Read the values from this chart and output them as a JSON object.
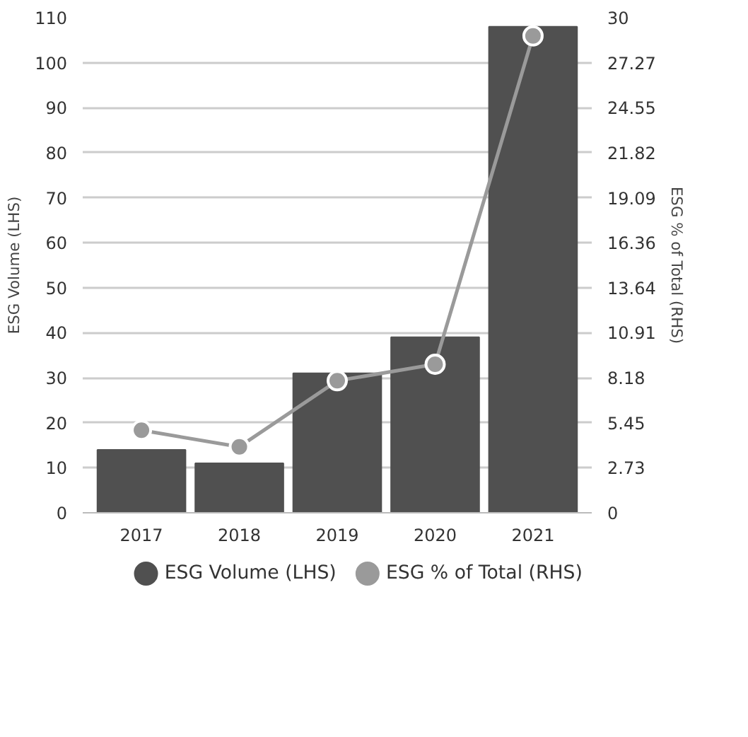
{
  "chart_data": {
    "type": "bar",
    "categories": [
      "2017",
      "2018",
      "2019",
      "2020",
      "2021"
    ],
    "ylabel": "ESG Volume (LHS)",
    "y2label": "ESG % of Total (RHS)",
    "series": [
      {
        "name": "ESG Volume (LHS)",
        "color": "#505050",
        "values": [
          14,
          11,
          31,
          39,
          108
        ]
      },
      {
        "name": "ESG % of Total (RHS)",
        "type": "line",
        "axis": "y2",
        "color": "#9a9a9a",
        "values": [
          5.0,
          4.0,
          8.0,
          9.0,
          28.9
        ]
      }
    ],
    "ylim": [
      0,
      110
    ],
    "yticks": [
      0,
      10,
      20,
      30,
      40,
      50,
      60,
      70,
      80,
      90,
      100,
      110
    ],
    "y2lim": [
      0,
      30
    ],
    "y2ticks": [
      0,
      {
        "value": 2.727,
        "label": "2.73"
      },
      {
        "value": 5.455,
        "label": "5.45"
      },
      {
        "value": 8.182,
        "label": "8.18"
      },
      {
        "value": 10.909,
        "label": "10.91"
      },
      {
        "value": 13.636,
        "label": "13.64"
      },
      {
        "value": 16.364,
        "label": "16.36"
      },
      {
        "value": 19.091,
        "label": "19.09"
      },
      {
        "value": 21.818,
        "label": "21.82"
      },
      {
        "value": 24.545,
        "label": "24.55"
      },
      {
        "value": 27.273,
        "label": "27.27"
      },
      30
    ],
    "grid": "y",
    "legend": "bottom",
    "marker": "circle"
  }
}
